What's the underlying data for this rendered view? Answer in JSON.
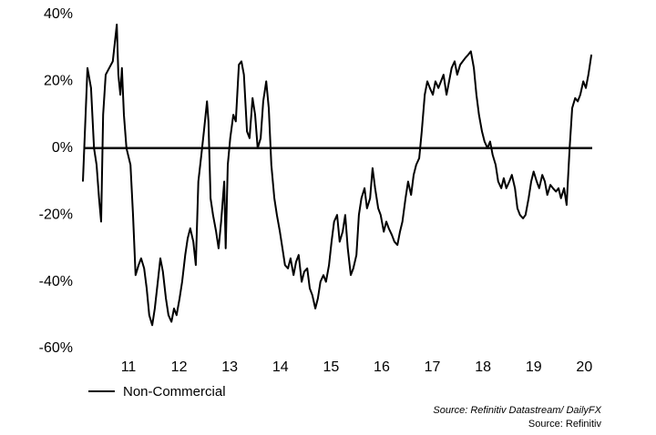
{
  "chart_data": {
    "type": "line",
    "series": [
      {
        "name": "Non-Commercial",
        "color": "#000000",
        "x": [
          10.1,
          10.19,
          10.26,
          10.32,
          10.37,
          10.42,
          10.46,
          10.5,
          10.55,
          10.62,
          10.69,
          10.77,
          10.8,
          10.84,
          10.87,
          10.91,
          10.96,
          11.04,
          11.09,
          11.14,
          11.2,
          11.25,
          11.31,
          11.36,
          11.41,
          11.47,
          11.52,
          11.58,
          11.63,
          11.68,
          11.74,
          11.79,
          11.85,
          11.9,
          11.95,
          12.01,
          12.06,
          12.12,
          12.17,
          12.22,
          12.28,
          12.33,
          12.38,
          12.44,
          12.49,
          12.55,
          12.58,
          12.62,
          12.67,
          12.73,
          12.78,
          12.83,
          12.89,
          12.92,
          12.96,
          13.01,
          13.07,
          13.12,
          13.18,
          13.23,
          13.28,
          13.34,
          13.39,
          13.45,
          13.5,
          13.55,
          13.61,
          13.66,
          13.72,
          13.77,
          13.82,
          13.88,
          13.93,
          13.99,
          14.04,
          14.09,
          14.15,
          14.2,
          14.26,
          14.31,
          14.36,
          14.42,
          14.47,
          14.53,
          14.58,
          14.63,
          14.69,
          14.74,
          14.79,
          14.85,
          14.9,
          14.96,
          15.01,
          15.06,
          15.12,
          15.17,
          15.23,
          15.28,
          15.33,
          15.39,
          15.44,
          15.5,
          15.55,
          15.6,
          15.66,
          15.71,
          15.77,
          15.82,
          15.87,
          15.93,
          15.98,
          16.04,
          16.09,
          16.14,
          16.2,
          16.25,
          16.31,
          16.36,
          16.41,
          16.47,
          16.52,
          16.58,
          16.63,
          16.68,
          16.74,
          16.79,
          16.85,
          16.9,
          16.95,
          17.01,
          17.06,
          17.12,
          17.17,
          17.22,
          17.28,
          17.33,
          17.38,
          17.44,
          17.49,
          17.55,
          17.6,
          17.65,
          17.71,
          17.76,
          17.82,
          17.87,
          17.92,
          17.98,
          18.03,
          18.09,
          18.14,
          18.19,
          18.25,
          18.3,
          18.36,
          18.41,
          18.46,
          18.52,
          18.57,
          18.63,
          18.68,
          18.73,
          18.79,
          18.84,
          18.9,
          18.95,
          19.0,
          19.06,
          19.11,
          19.17,
          19.22,
          19.27,
          19.33,
          19.38,
          19.44,
          19.49,
          19.54,
          19.6,
          19.65,
          19.71,
          19.76,
          19.82,
          19.87,
          19.92,
          19.98,
          20.03,
          20.08,
          20.14
        ],
        "values": [
          -10,
          24,
          18,
          0,
          -5,
          -15,
          -22,
          10,
          22,
          24,
          26,
          37,
          22,
          16,
          24,
          10,
          0,
          -5,
          -20,
          -38,
          -35,
          -33,
          -36,
          -42,
          -50,
          -53,
          -48,
          -40,
          -33,
          -37,
          -45,
          -50,
          -52,
          -48,
          -50,
          -45,
          -40,
          -32,
          -27,
          -24,
          -28,
          -35,
          -10,
          -2,
          5,
          14,
          8,
          -15,
          -20,
          -25,
          -30,
          -22,
          -10,
          -30,
          -5,
          3,
          10,
          8,
          25,
          26,
          22,
          5,
          3,
          15,
          10,
          0,
          3,
          14,
          20,
          12,
          -5,
          -15,
          -20,
          -25,
          -30,
          -35,
          -36,
          -33,
          -38,
          -34,
          -32,
          -40,
          -37,
          -36,
          -42,
          -44,
          -48,
          -45,
          -40,
          -38,
          -40,
          -35,
          -28,
          -22,
          -20,
          -28,
          -25,
          -20,
          -30,
          -38,
          -36,
          -32,
          -20,
          -15,
          -12,
          -18,
          -15,
          -6,
          -12,
          -18,
          -20,
          -25,
          -22,
          -24,
          -26,
          -28,
          -29,
          -25,
          -22,
          -15,
          -10,
          -14,
          -8,
          -5,
          -3,
          5,
          16,
          20,
          18,
          16,
          20,
          18,
          20,
          22,
          16,
          20,
          24,
          26,
          22,
          25,
          26,
          27,
          28,
          29,
          24,
          16,
          10,
          5,
          2,
          0,
          2,
          -2,
          -5,
          -10,
          -12,
          -9,
          -12,
          -10,
          -8,
          -12,
          -18,
          -20,
          -21,
          -20,
          -15,
          -10,
          -7,
          -10,
          -12,
          -8,
          -10,
          -14,
          -11,
          -12,
          -13,
          -12,
          -15,
          -12,
          -17,
          0,
          12,
          15,
          14,
          16,
          20,
          18,
          22,
          28
        ]
      }
    ],
    "xlim": [
      10.0,
      20.3
    ],
    "xticks": [
      11,
      12,
      13,
      14,
      15,
      16,
      17,
      18,
      19,
      20
    ],
    "ylim": [
      -60,
      40
    ],
    "yticks": [
      {
        "value": -60,
        "label": "-60%"
      },
      {
        "value": -40,
        "label": "-40%"
      },
      {
        "value": -20,
        "label": "-20%"
      },
      {
        "value": 0,
        "label": "0%"
      },
      {
        "value": 20,
        "label": "20%"
      },
      {
        "value": 40,
        "label": "40%"
      }
    ],
    "source": "Source: Refinitiv Datastream/ DailyFX",
    "source2": "Source: Refinitiv"
  }
}
